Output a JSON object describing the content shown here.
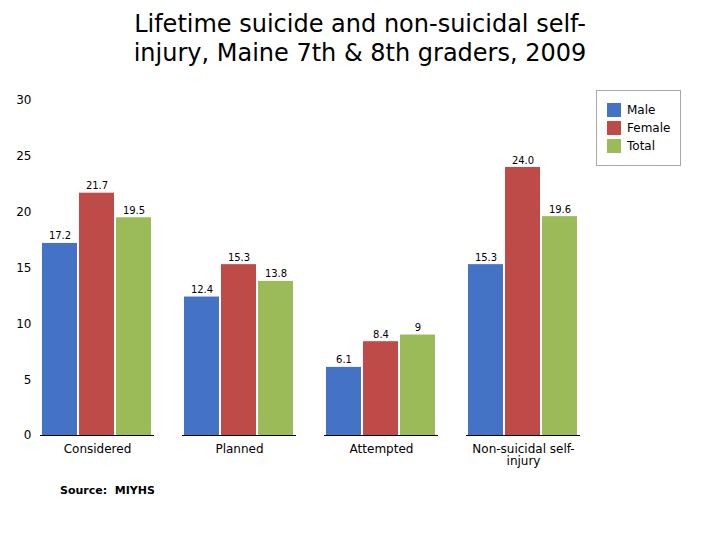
{
  "chart_data": {
    "type": "bar",
    "title": "Lifetime suicide and non-suicidal self-\ninjury, Maine 7th & 8th graders, 2009",
    "annotations": [
      "Source:  MIYHS"
    ],
    "categories": [
      "Considered",
      "Planned",
      "Attempted",
      "Non-suicidal self-\ninjury"
    ],
    "series": [
      {
        "name": "Male",
        "color": "#4472C4",
        "values": [
          17.2,
          12.4,
          6.1,
          15.3
        ]
      },
      {
        "name": "Female",
        "color": "#BE4B48",
        "values": [
          21.7,
          15.3,
          8.4,
          24.0
        ],
        "value_labels": [
          "21.7",
          "15.3",
          "8.4",
          "24.0"
        ]
      },
      {
        "name": "Total",
        "color": "#9BBB59",
        "values": [
          19.5,
          13.8,
          9.0,
          19.6
        ]
      }
    ],
    "ylim": [
      0,
      30
    ],
    "yticks": [
      0,
      5,
      10,
      15,
      20,
      25,
      30
    ],
    "grid": false,
    "legend": "upper right",
    "data_labels": true
  }
}
